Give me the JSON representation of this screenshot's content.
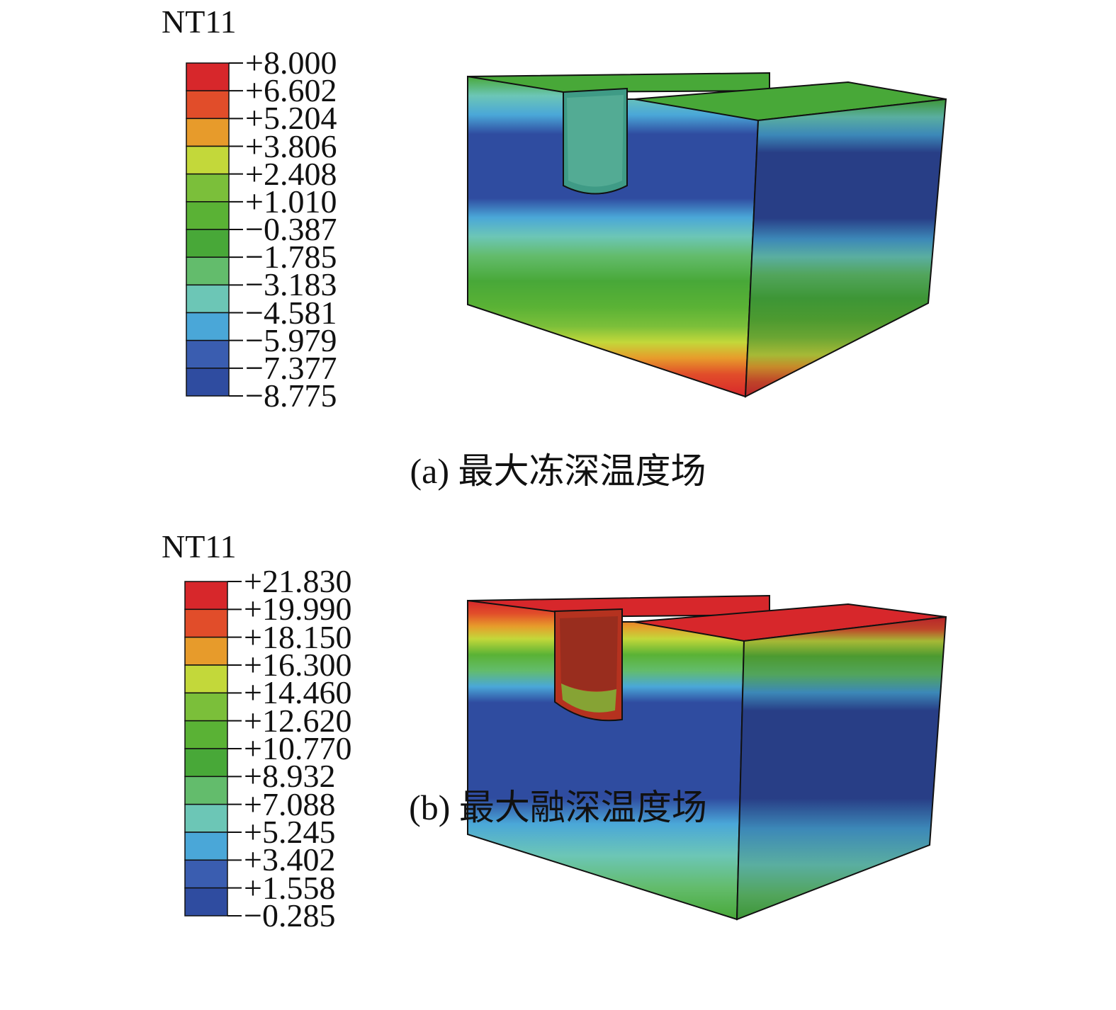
{
  "panels": [
    {
      "legend_title": "NT11",
      "ticks": [
        "+8.000",
        "+6.602",
        "+5.204",
        "+3.806",
        "+2.408",
        "+1.010",
        "−0.387",
        "−1.785",
        "−3.183",
        "−4.581",
        "−5.979",
        "−7.377",
        "−8.775"
      ],
      "caption": "(a) 最大冻深温度场"
    },
    {
      "legend_title": "NT11",
      "ticks": [
        "+21.830",
        "+19.990",
        "+18.150",
        "+16.300",
        "+14.460",
        "+12.620",
        "+10.770",
        "+8.932",
        "+7.088",
        "+5.245",
        "+3.402",
        "+1.558",
        "−0.285"
      ],
      "caption": "(b) 最大融深温度场"
    }
  ],
  "colors": {
    "band_colors": [
      "#d7272b",
      "#e14d2a",
      "#e79b2b",
      "#c3d83a",
      "#7bbf3a",
      "#5ab235",
      "#48a838",
      "#63bc6c",
      "#6cc6b6",
      "#4aa7d8",
      "#3a5db0",
      "#2f4ca0"
    ]
  }
}
